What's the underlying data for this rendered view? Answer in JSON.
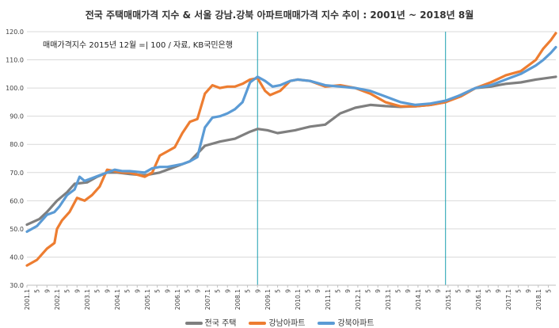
{
  "chart_data": {
    "type": "line",
    "title": "전국 주택매매가격 지수 & 서울 강남.강북 아파트매매가격 지수 추이 : 2001년 ~ 2018년 8월",
    "annotation": "매매가격지수 2015년 12월 =| 100 / 자료, KB국민은행",
    "ylim": [
      30,
      120
    ],
    "yticks": [
      "30.0",
      "40.0",
      "50.0",
      "60.0",
      "70.0",
      "80.0",
      "90.0",
      "100.0",
      "110.0",
      "120.0"
    ],
    "x_start": "2001.1",
    "x_end": "2018.8",
    "x_tick_labels": [
      "2001.1",
      "5",
      "9",
      "2002.1",
      "5",
      "9",
      "2003.1",
      "5",
      "9",
      "2004.1",
      "5",
      "9",
      "2005.1",
      "5",
      "9",
      "2006.1",
      "5",
      "9",
      "2007.1",
      "5",
      "9",
      "2008.1",
      "5",
      "9",
      "2009.1",
      "5",
      "9",
      "2010.1",
      "5",
      "9",
      "2011.1",
      "5",
      "9",
      "2012.1",
      "5",
      "9",
      "2013.1",
      "5",
      "9",
      "2014.1",
      "5",
      "9",
      "2015.1",
      "5",
      "9",
      "2016.1",
      "5",
      "9",
      "2017.1",
      "5",
      "9",
      "2018.1",
      "5"
    ],
    "vertical_lines": [
      "2008.9",
      "2014.12"
    ],
    "grid": true,
    "legend_position": "bottom",
    "series": [
      {
        "name": "전국 주택",
        "color": "#7f7f7f",
        "points": [
          [
            "2001.1",
            51.5
          ],
          [
            "2001.6",
            53.5
          ],
          [
            "2001.9",
            56
          ],
          [
            "2002.1",
            60
          ],
          [
            "2002.5",
            63
          ],
          [
            "2002.8",
            66
          ],
          [
            "2003.1",
            66.5
          ],
          [
            "2003.5",
            68.5
          ],
          [
            "2003.9",
            70
          ],
          [
            "2004.1",
            70
          ],
          [
            "2004.6",
            69.5
          ],
          [
            "2004.12",
            69
          ],
          [
            "2005.6",
            70
          ],
          [
            "2005.12",
            72
          ],
          [
            "2006.6",
            74
          ],
          [
            "2006.12",
            79.5
          ],
          [
            "2007.6",
            81
          ],
          [
            "2007.12",
            82
          ],
          [
            "2008.6",
            84.5
          ],
          [
            "2008.9",
            85.5
          ],
          [
            "2009.1",
            85
          ],
          [
            "2009.5",
            84
          ],
          [
            "2009.12",
            85
          ],
          [
            "2010.6",
            86.3
          ],
          [
            "2010.12",
            87
          ],
          [
            "2011.6",
            91
          ],
          [
            "2011.12",
            93
          ],
          [
            "2012.6",
            94
          ],
          [
            "2012.12",
            93.6
          ],
          [
            "2013.6",
            93.3
          ],
          [
            "2013.12",
            93.5
          ],
          [
            "2014.6",
            94
          ],
          [
            "2014.12",
            95
          ],
          [
            "2015.6",
            97.5
          ],
          [
            "2015.12",
            100
          ],
          [
            "2016.6",
            100.5
          ],
          [
            "2016.12",
            101.5
          ],
          [
            "2017.6",
            102
          ],
          [
            "2017.12",
            103
          ],
          [
            "2018.8",
            104
          ]
        ]
      },
      {
        "name": "강남아파트",
        "color": "#ed7d31",
        "points": [
          [
            "2001.1",
            37
          ],
          [
            "2001.5",
            39
          ],
          [
            "2001.9",
            43
          ],
          [
            "2001.12",
            45
          ],
          [
            "2002.1",
            50
          ],
          [
            "2002.3",
            53
          ],
          [
            "2002.6",
            56
          ],
          [
            "2002.9",
            61
          ],
          [
            "2002.12",
            60
          ],
          [
            "2003.3",
            62
          ],
          [
            "2003.6",
            65
          ],
          [
            "2003.9",
            71
          ],
          [
            "2003.12",
            70.5
          ],
          [
            "2004.3",
            70
          ],
          [
            "2004.6",
            70
          ],
          [
            "2004.12",
            68.5
          ],
          [
            "2005.3",
            70
          ],
          [
            "2005.6",
            76
          ],
          [
            "2005.9",
            77.5
          ],
          [
            "2005.12",
            79
          ],
          [
            "2006.3",
            84
          ],
          [
            "2006.6",
            88
          ],
          [
            "2006.9",
            89
          ],
          [
            "2006.12",
            98
          ],
          [
            "2007.3",
            101
          ],
          [
            "2007.6",
            100
          ],
          [
            "2007.9",
            100.5
          ],
          [
            "2007.12",
            100.5
          ],
          [
            "2008.3",
            101.5
          ],
          [
            "2008.6",
            103
          ],
          [
            "2008.9",
            103.5
          ],
          [
            "2008.12",
            99
          ],
          [
            "2009.2",
            97.5
          ],
          [
            "2009.6",
            99
          ],
          [
            "2009.10",
            102.5
          ],
          [
            "2010.1",
            103
          ],
          [
            "2010.6",
            102.5
          ],
          [
            "2010.12",
            100.5
          ],
          [
            "2011.6",
            101
          ],
          [
            "2011.12",
            100
          ],
          [
            "2012.6",
            98
          ],
          [
            "2012.12",
            95
          ],
          [
            "2013.6",
            93.5
          ],
          [
            "2013.12",
            93.5
          ],
          [
            "2014.6",
            94
          ],
          [
            "2014.12",
            95
          ],
          [
            "2015.6",
            97
          ],
          [
            "2015.12",
            100
          ],
          [
            "2016.6",
            102
          ],
          [
            "2016.12",
            104.5
          ],
          [
            "2017.6",
            106
          ],
          [
            "2017.12",
            110
          ],
          [
            "2018.3",
            114
          ],
          [
            "2018.6",
            117
          ],
          [
            "2018.8",
            119.5
          ]
        ]
      },
      {
        "name": "강북아파트",
        "color": "#5b9bd5",
        "points": [
          [
            "2001.1",
            49
          ],
          [
            "2001.5",
            51
          ],
          [
            "2001.9",
            55
          ],
          [
            "2001.12",
            56
          ],
          [
            "2002.2",
            58
          ],
          [
            "2002.5",
            62
          ],
          [
            "2002.8",
            64
          ],
          [
            "2002.10",
            68.5
          ],
          [
            "2002.12",
            67
          ],
          [
            "2003.3",
            68
          ],
          [
            "2003.6",
            69
          ],
          [
            "2003.9",
            70
          ],
          [
            "2003.12",
            71
          ],
          [
            "2004.3",
            70.5
          ],
          [
            "2004.6",
            70.5
          ],
          [
            "2004.12",
            70
          ],
          [
            "2005.3",
            71.5
          ],
          [
            "2005.6",
            72
          ],
          [
            "2005.9",
            72
          ],
          [
            "2005.12",
            72.5
          ],
          [
            "2006.3",
            73
          ],
          [
            "2006.6",
            74
          ],
          [
            "2006.9",
            75.5
          ],
          [
            "2006.12",
            86
          ],
          [
            "2007.3",
            89.5
          ],
          [
            "2007.6",
            90
          ],
          [
            "2007.9",
            91
          ],
          [
            "2007.12",
            92.5
          ],
          [
            "2008.3",
            95
          ],
          [
            "2008.6",
            102
          ],
          [
            "2008.9",
            104
          ],
          [
            "2008.12",
            102.5
          ],
          [
            "2009.3",
            100.5
          ],
          [
            "2009.6",
            101
          ],
          [
            "2009.10",
            102.5
          ],
          [
            "2010.1",
            103
          ],
          [
            "2010.6",
            102.5
          ],
          [
            "2010.12",
            101
          ],
          [
            "2011.6",
            100.5
          ],
          [
            "2011.12",
            100
          ],
          [
            "2012.6",
            99
          ],
          [
            "2012.12",
            97
          ],
          [
            "2013.6",
            95
          ],
          [
            "2013.12",
            94
          ],
          [
            "2014.6",
            94.5
          ],
          [
            "2014.12",
            95.5
          ],
          [
            "2015.6",
            97.5
          ],
          [
            "2015.12",
            100
          ],
          [
            "2016.6",
            101
          ],
          [
            "2016.12",
            103
          ],
          [
            "2017.6",
            105
          ],
          [
            "2017.12",
            108
          ],
          [
            "2018.3",
            110
          ],
          [
            "2018.6",
            112.5
          ],
          [
            "2018.8",
            114.5
          ]
        ]
      }
    ]
  }
}
